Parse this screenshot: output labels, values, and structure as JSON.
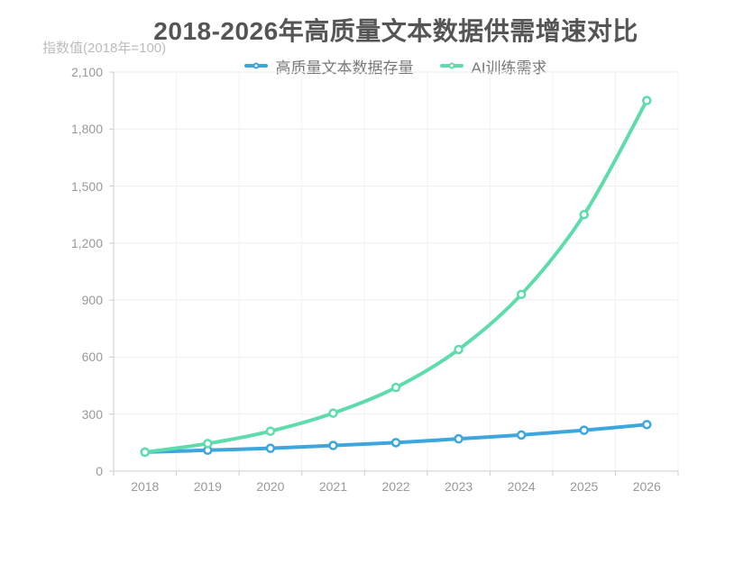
{
  "chart_data": {
    "type": "line",
    "title": "2018-2026年高质量文本数据供需增速对比",
    "y_axis_name": "指数值(2018年=100)",
    "categories": [
      "2018",
      "2019",
      "2020",
      "2021",
      "2022",
      "2023",
      "2024",
      "2025",
      "2026"
    ],
    "series": [
      {
        "name": "高质量文本数据存量",
        "color": "#3da6dc",
        "values": [
          100,
          110,
          120,
          135,
          150,
          170,
          190,
          215,
          245
        ]
      },
      {
        "name": "AI训练需求",
        "color": "#5edcab",
        "values": [
          100,
          145,
          210,
          305,
          440,
          640,
          930,
          1350,
          1950
        ]
      }
    ],
    "y_ticks": [
      2100,
      1800,
      1500,
      1200,
      900,
      600,
      300,
      0
    ],
    "y_tick_labels": [
      "2,100",
      "1,800",
      "1,500",
      "1,200",
      "900",
      "600",
      "300",
      "0"
    ],
    "ylim": [
      0,
      2100
    ],
    "grid": true,
    "legend_position": "top",
    "marker_style": "empty-circle",
    "smooth": true
  }
}
